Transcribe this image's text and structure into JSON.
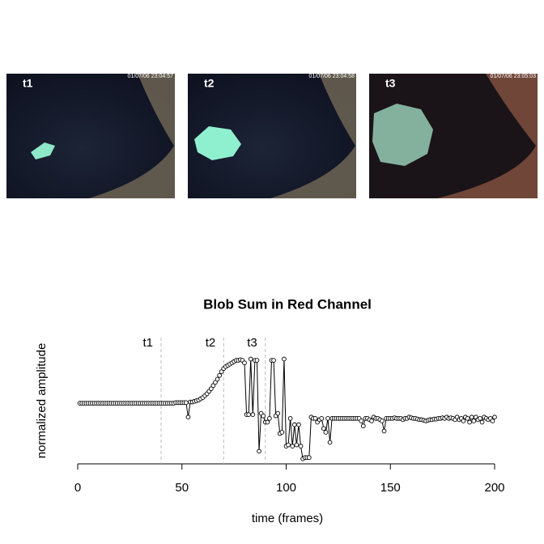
{
  "panels": [
    {
      "label": "t1",
      "timestamp": "01/07/06 23:04:57"
    },
    {
      "label": "t2",
      "timestamp": "01/07/06 23:04:58"
    },
    {
      "label": "t3",
      "timestamp": "01/07/06 23:05:03"
    }
  ],
  "chart_data": {
    "type": "line",
    "title": "Blob Sum in Red Channel",
    "x_label": "time (frames)",
    "y_label": "normalized amplitude",
    "xlim": [
      0,
      200
    ],
    "xticks": [
      0,
      50,
      100,
      150,
      200
    ],
    "ylim": [
      0,
      1
    ],
    "color": "#000000",
    "vlines": [
      40,
      70,
      90
    ],
    "vline_labels": [
      "t1",
      "t2",
      "t3"
    ],
    "x": [
      1,
      2,
      3,
      4,
      5,
      6,
      7,
      8,
      9,
      10,
      11,
      12,
      13,
      14,
      15,
      16,
      17,
      18,
      19,
      20,
      21,
      22,
      23,
      24,
      25,
      26,
      27,
      28,
      29,
      30,
      31,
      32,
      33,
      34,
      35,
      36,
      37,
      38,
      39,
      40,
      41,
      42,
      43,
      44,
      45,
      46,
      47,
      48,
      49,
      50,
      51,
      52,
      53,
      54,
      55,
      56,
      57,
      58,
      59,
      60,
      61,
      62,
      63,
      64,
      65,
      66,
      67,
      68,
      69,
      70,
      71,
      72,
      73,
      74,
      75,
      76,
      77,
      78,
      79,
      80,
      81,
      82,
      83,
      84,
      85,
      86,
      87,
      88,
      89,
      90,
      91,
      92,
      93,
      94,
      95,
      96,
      97,
      98,
      99,
      100,
      101,
      102,
      103,
      104,
      105,
      106,
      107,
      108,
      109,
      110,
      111,
      112,
      113,
      114,
      115,
      116,
      117,
      118,
      119,
      120,
      121,
      122,
      123,
      124,
      125,
      126,
      127,
      128,
      129,
      130,
      131,
      132,
      133,
      134,
      135,
      136,
      137,
      138,
      139,
      140,
      141,
      142,
      143,
      144,
      145,
      146,
      147,
      148,
      149,
      150,
      151,
      152,
      153,
      154,
      155,
      156,
      157,
      158,
      159,
      160,
      161,
      162,
      163,
      164,
      165,
      166,
      167,
      168,
      169,
      170,
      171,
      172,
      173,
      174,
      175,
      176,
      177,
      178,
      179,
      180,
      181,
      182,
      183,
      184,
      185,
      186,
      187,
      188,
      189,
      190,
      191,
      192,
      193,
      194,
      195,
      196,
      197,
      198,
      199,
      200
    ],
    "values": [
      0.48,
      0.48,
      0.48,
      0.48,
      0.48,
      0.48,
      0.48,
      0.48,
      0.48,
      0.48,
      0.48,
      0.48,
      0.48,
      0.48,
      0.48,
      0.48,
      0.48,
      0.48,
      0.48,
      0.48,
      0.48,
      0.48,
      0.48,
      0.48,
      0.48,
      0.48,
      0.48,
      0.48,
      0.48,
      0.48,
      0.48,
      0.48,
      0.48,
      0.48,
      0.48,
      0.48,
      0.48,
      0.48,
      0.48,
      0.48,
      0.48,
      0.48,
      0.48,
      0.48,
      0.48,
      0.48,
      0.485,
      0.485,
      0.485,
      0.485,
      0.485,
      0.485,
      0.37,
      0.49,
      0.49,
      0.495,
      0.5,
      0.505,
      0.515,
      0.525,
      0.54,
      0.555,
      0.575,
      0.595,
      0.62,
      0.645,
      0.67,
      0.7,
      0.73,
      0.755,
      0.77,
      0.78,
      0.79,
      0.8,
      0.81,
      0.82,
      0.82,
      0.825,
      0.82,
      0.8,
      0.39,
      0.39,
      0.83,
      0.39,
      0.82,
      0.82,
      0.1,
      0.4,
      0.38,
      0.33,
      0.33,
      0.36,
      0.82,
      0.82,
      0.38,
      0.4,
      0.24,
      0.25,
      0.83,
      0.14,
      0.15,
      0.36,
      0.14,
      0.31,
      0.15,
      0.31,
      0.14,
      0.04,
      0.05,
      0.05,
      0.05,
      0.37,
      0.36,
      0.36,
      0.33,
      0.35,
      0.36,
      0.28,
      0.25,
      0.36,
      0.17,
      0.36,
      0.36,
      0.36,
      0.36,
      0.36,
      0.36,
      0.36,
      0.36,
      0.36,
      0.36,
      0.36,
      0.36,
      0.36,
      0.36,
      0.34,
      0.3,
      0.36,
      0.36,
      0.35,
      0.34,
      0.37,
      0.36,
      0.36,
      0.35,
      0.34,
      0.26,
      0.36,
      0.36,
      0.36,
      0.36,
      0.365,
      0.36,
      0.36,
      0.36,
      0.35,
      0.36,
      0.36,
      0.37,
      0.365,
      0.36,
      0.36,
      0.355,
      0.35,
      0.35,
      0.345,
      0.34,
      0.345,
      0.35,
      0.35,
      0.355,
      0.355,
      0.36,
      0.36,
      0.365,
      0.36,
      0.37,
      0.36,
      0.365,
      0.36,
      0.35,
      0.37,
      0.35,
      0.36,
      0.34,
      0.37,
      0.36,
      0.33,
      0.37,
      0.34,
      0.37,
      0.35,
      0.36,
      0.33,
      0.37,
      0.36,
      0.35,
      0.36,
      0.34,
      0.37
    ]
  }
}
